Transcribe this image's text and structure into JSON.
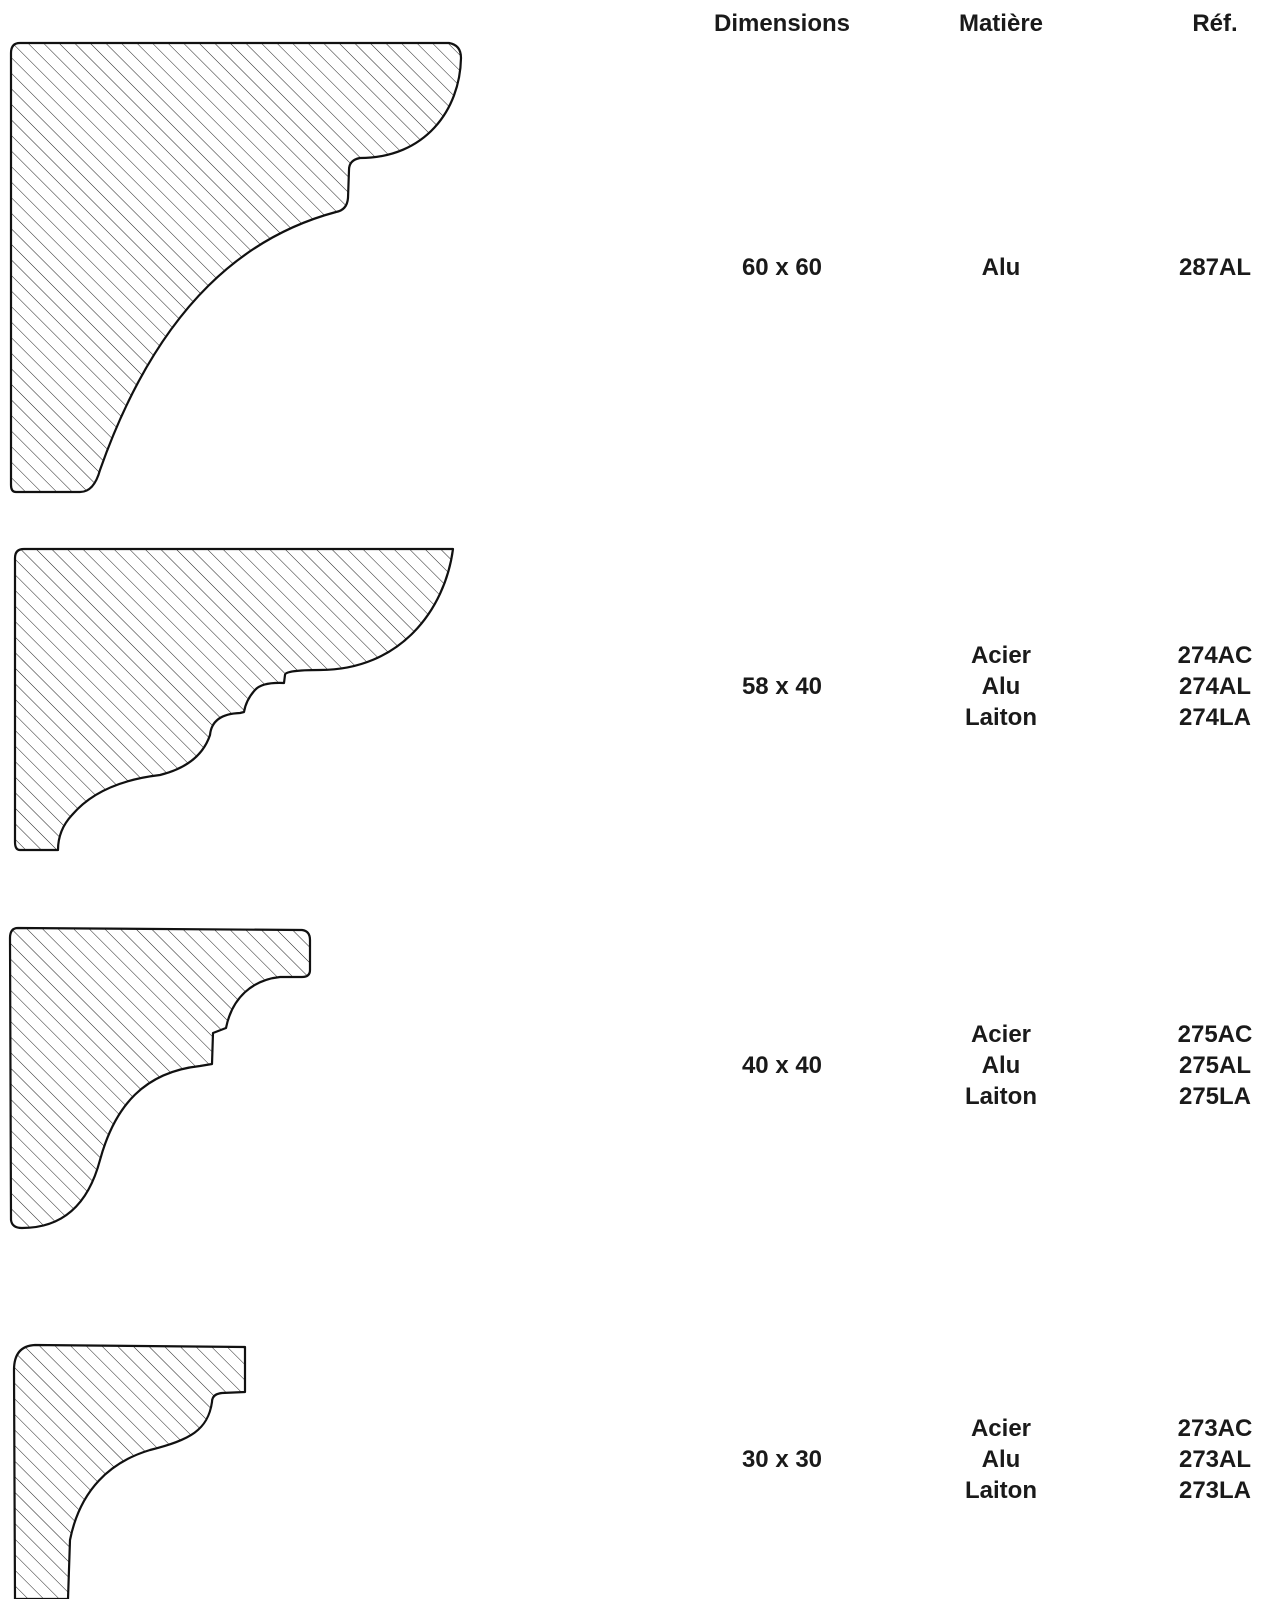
{
  "headers": {
    "dimensions": "Dimensions",
    "matiere": "Matière",
    "ref": "Réf."
  },
  "rows": [
    {
      "dimensions": "60 x 60",
      "materials": [
        "Alu"
      ],
      "refs": [
        "287AL"
      ]
    },
    {
      "dimensions": "58 x 40",
      "materials": [
        "Acier",
        "Alu",
        "Laiton"
      ],
      "refs": [
        "274AC",
        "274AL",
        "274LA"
      ]
    },
    {
      "dimensions": "40 x 40",
      "materials": [
        "Acier",
        "Alu",
        "Laiton"
      ],
      "refs": [
        "275AC",
        "275AL",
        "275LA"
      ]
    },
    {
      "dimensions": "30 x 30",
      "materials": [
        "Acier",
        "Alu",
        "Laiton"
      ],
      "refs": [
        "273AC",
        "273AL",
        "273LA"
      ]
    }
  ],
  "colors": {
    "text": "#1a1a1a",
    "outline": "#111111",
    "hatch": "#222222"
  }
}
